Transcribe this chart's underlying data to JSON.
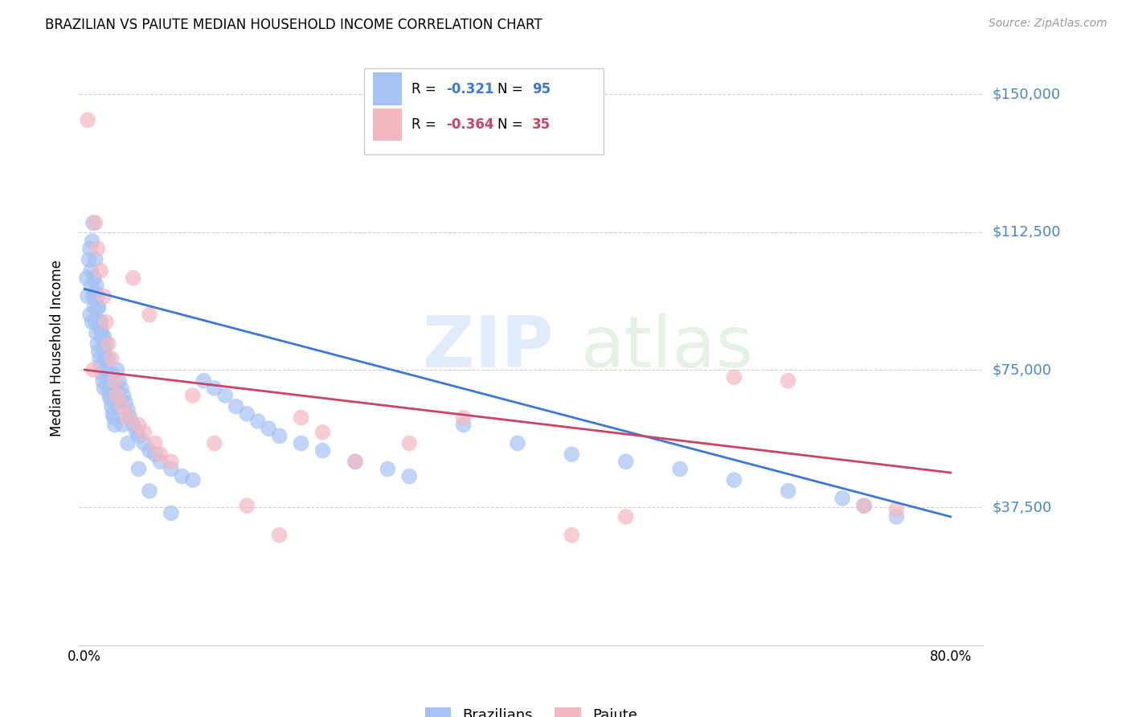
{
  "title": "BRAZILIAN VS PAIUTE MEDIAN HOUSEHOLD INCOME CORRELATION CHART",
  "source": "Source: ZipAtlas.com",
  "ylabel": "Median Household Income",
  "blue_color": "#a4c2f4",
  "pink_color": "#f4b8c1",
  "blue_line_color": "#3c78d8",
  "pink_line_color": "#cc4466",
  "label_color": "#4a86c8",
  "grid_color": "#cccccc",
  "ytick_vals": [
    0,
    37500,
    75000,
    112500,
    150000
  ],
  "ytick_labels": [
    "",
    "$37,500",
    "$75,000",
    "$112,500",
    "$150,000"
  ],
  "xtick_vals": [
    0.0,
    0.16,
    0.32,
    0.48,
    0.64,
    0.8
  ],
  "xtick_labels": [
    "0.0%",
    "",
    "",
    "",
    "",
    "80.0%"
  ],
  "ylim": [
    0,
    162000
  ],
  "xlim": [
    -0.005,
    0.83
  ],
  "watermark_zip": "ZIP",
  "watermark_atlas": "atlas",
  "legend_r1": "R = ",
  "legend_v1": "-0.321",
  "legend_n1": "N = ",
  "legend_nv1": "95",
  "legend_r2": "R = ",
  "legend_v2": "-0.364",
  "legend_n2": "N = ",
  "legend_nv2": "35",
  "blue_label": "Brazilians",
  "pink_label": "Paiute",
  "blue_x": [
    0.002,
    0.003,
    0.004,
    0.005,
    0.005,
    0.006,
    0.006,
    0.007,
    0.007,
    0.008,
    0.008,
    0.009,
    0.009,
    0.01,
    0.01,
    0.011,
    0.011,
    0.012,
    0.012,
    0.013,
    0.013,
    0.014,
    0.014,
    0.015,
    0.015,
    0.016,
    0.016,
    0.017,
    0.017,
    0.018,
    0.018,
    0.019,
    0.02,
    0.021,
    0.022,
    0.023,
    0.024,
    0.025,
    0.026,
    0.027,
    0.028,
    0.03,
    0.032,
    0.034,
    0.036,
    0.038,
    0.04,
    0.042,
    0.045,
    0.048,
    0.05,
    0.055,
    0.06,
    0.065,
    0.07,
    0.08,
    0.09,
    0.1,
    0.11,
    0.12,
    0.13,
    0.14,
    0.15,
    0.16,
    0.17,
    0.18,
    0.2,
    0.22,
    0.25,
    0.28,
    0.3,
    0.35,
    0.4,
    0.45,
    0.5,
    0.55,
    0.6,
    0.65,
    0.7,
    0.72,
    0.01,
    0.012,
    0.015,
    0.018,
    0.02,
    0.022,
    0.025,
    0.028,
    0.03,
    0.035,
    0.04,
    0.05,
    0.06,
    0.08,
    0.75
  ],
  "blue_y": [
    100000,
    95000,
    105000,
    108000,
    90000,
    102000,
    98000,
    110000,
    88000,
    115000,
    95000,
    100000,
    92000,
    105000,
    88000,
    98000,
    85000,
    95000,
    82000,
    92000,
    80000,
    88000,
    78000,
    86000,
    76000,
    85000,
    74000,
    83000,
    72000,
    80000,
    70000,
    78000,
    75000,
    73000,
    70000,
    68000,
    67000,
    65000,
    63000,
    62000,
    60000,
    75000,
    72000,
    70000,
    68000,
    66000,
    64000,
    62000,
    60000,
    58000,
    57000,
    55000,
    53000,
    52000,
    50000,
    48000,
    46000,
    45000,
    72000,
    70000,
    68000,
    65000,
    63000,
    61000,
    59000,
    57000,
    55000,
    53000,
    50000,
    48000,
    46000,
    60000,
    55000,
    52000,
    50000,
    48000,
    45000,
    42000,
    40000,
    38000,
    96000,
    92000,
    88000,
    84000,
    82000,
    78000,
    74000,
    70000,
    66000,
    60000,
    55000,
    48000,
    42000,
    36000,
    35000
  ],
  "pink_x": [
    0.003,
    0.008,
    0.01,
    0.012,
    0.015,
    0.018,
    0.02,
    0.022,
    0.025,
    0.028,
    0.03,
    0.035,
    0.04,
    0.045,
    0.05,
    0.055,
    0.06,
    0.065,
    0.07,
    0.08,
    0.1,
    0.12,
    0.15,
    0.18,
    0.2,
    0.22,
    0.25,
    0.3,
    0.35,
    0.45,
    0.5,
    0.6,
    0.65,
    0.72,
    0.75
  ],
  "pink_y": [
    143000,
    75000,
    115000,
    108000,
    102000,
    95000,
    88000,
    82000,
    78000,
    72000,
    68000,
    65000,
    62000,
    100000,
    60000,
    58000,
    90000,
    55000,
    52000,
    50000,
    68000,
    55000,
    38000,
    30000,
    62000,
    58000,
    50000,
    55000,
    62000,
    30000,
    35000,
    73000,
    72000,
    38000,
    37000
  ]
}
